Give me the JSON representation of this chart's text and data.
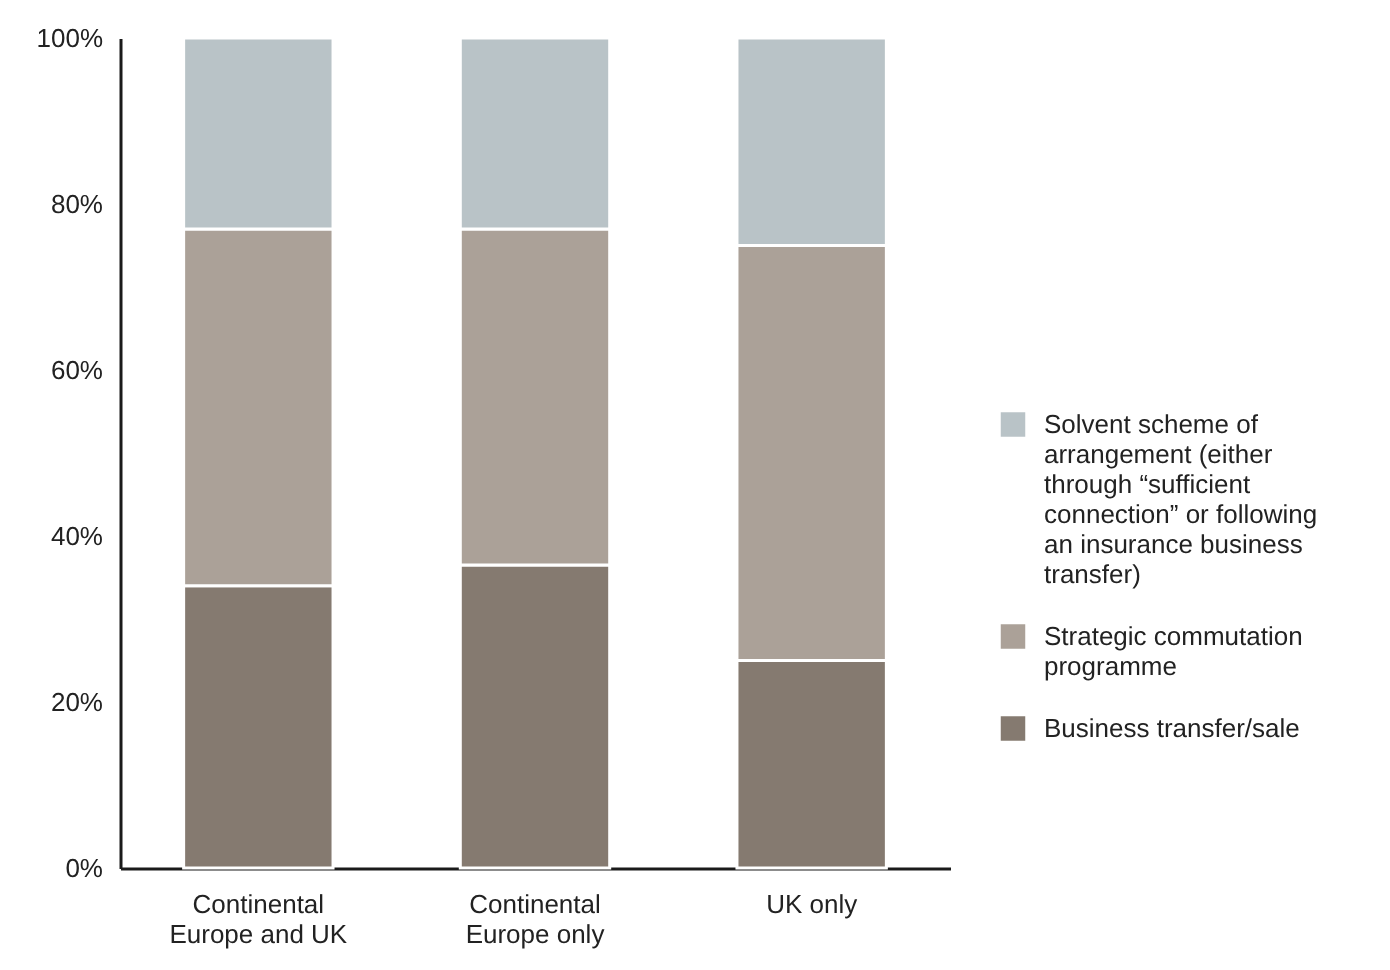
{
  "chart_data": {
    "type": "bar",
    "stacked": true,
    "categories": [
      "Continental Europe and UK",
      "Continental Europe only",
      "UK only"
    ],
    "series": [
      {
        "name": "Business transfer/sale",
        "color": "#857a70",
        "values": [
          34,
          36.5,
          25
        ]
      },
      {
        "name": "Strategic commutation programme",
        "color": "#aba198",
        "values": [
          43,
          40.5,
          50
        ]
      },
      {
        "name": "Solvent scheme of arrangement (either through “sufficient connection” or following an insurance business transfer)",
        "color": "#b9c3c7",
        "values": [
          23,
          23,
          25
        ]
      }
    ],
    "ylim": [
      0,
      100
    ],
    "yticks": [
      {
        "value": 0,
        "label": "0%"
      },
      {
        "value": 20,
        "label": "20%"
      },
      {
        "value": 40,
        "label": "40%"
      },
      {
        "value": 60,
        "label": "60%"
      },
      {
        "value": 80,
        "label": "80%"
      },
      {
        "value": 100,
        "label": "100%"
      }
    ],
    "grid": false,
    "legend": "right"
  }
}
